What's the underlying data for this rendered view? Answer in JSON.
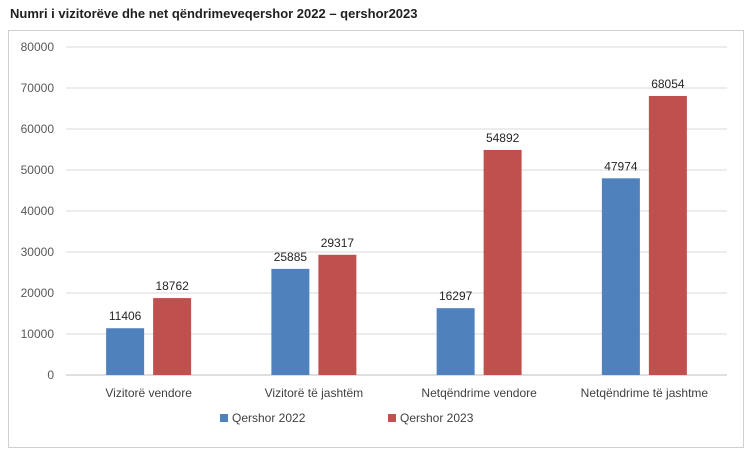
{
  "chart_data": {
    "type": "bar",
    "title": "Numri i vizitorëve dhe net qëndrimeveqershor 2022 – qershor2023",
    "categories": [
      "Vizitorë vendore",
      "Vizitorë të jashtëm",
      "Netqëndrime vendore",
      "Netqëndrime të jashtme"
    ],
    "series": [
      {
        "name": "Qershor 2022",
        "values": [
          11406,
          25885,
          16297,
          47974
        ],
        "color": "#4f81bd"
      },
      {
        "name": "Qershor 2023",
        "values": [
          18762,
          29317,
          54892,
          68054
        ],
        "color": "#c0504d"
      }
    ],
    "ylim": [
      0,
      80000
    ],
    "yticks": [
      0,
      10000,
      20000,
      30000,
      40000,
      50000,
      60000,
      70000,
      80000
    ],
    "grid": true,
    "legend": "bottom"
  }
}
